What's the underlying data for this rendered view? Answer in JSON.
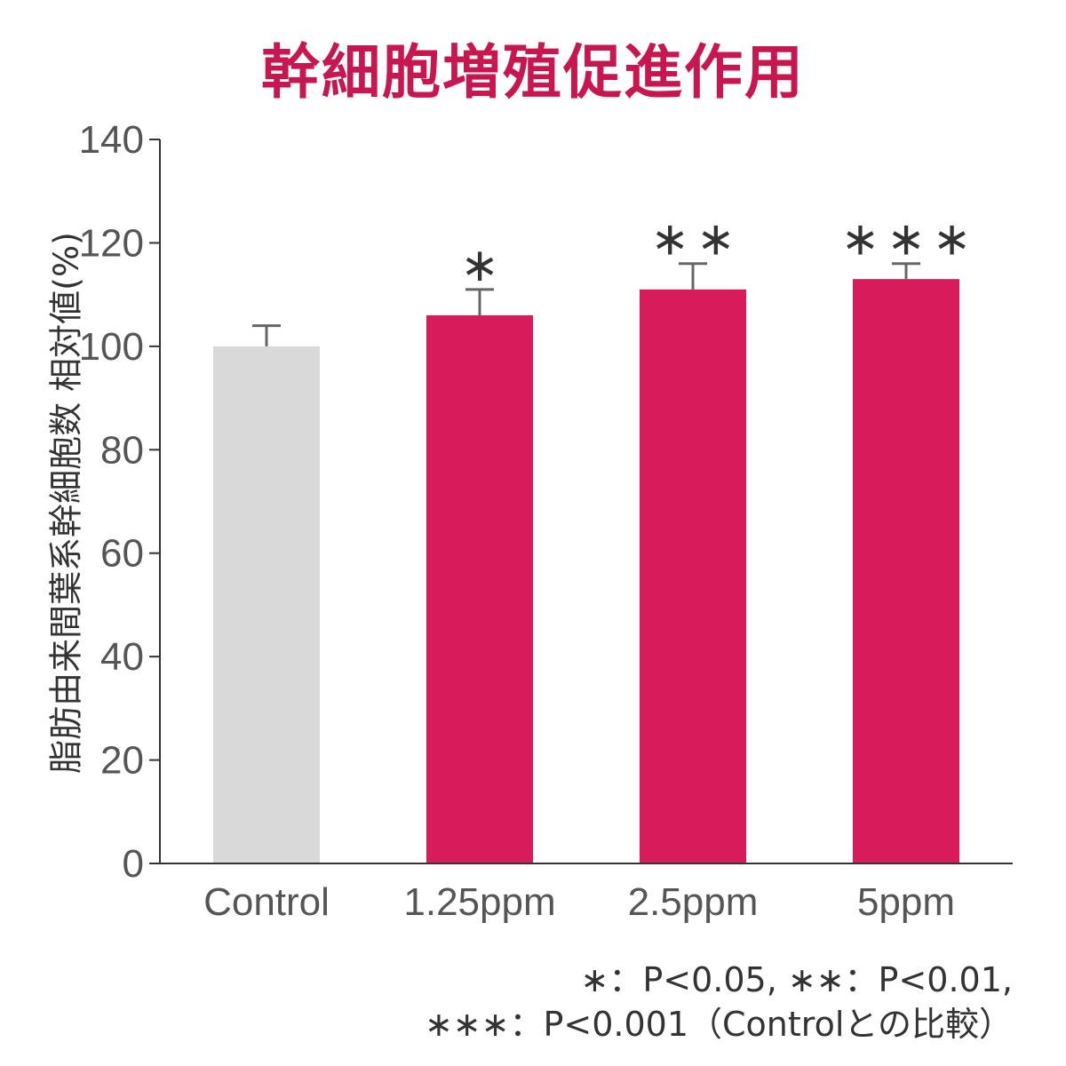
{
  "title": "幹細胞増殖促進作用",
  "colors": {
    "title": "#c8174f",
    "control_bar": "#d9d9d9",
    "treatment_bar": "#d81b5a",
    "axis": "#333333",
    "error_bar": "#666666"
  },
  "chart_data": {
    "type": "bar",
    "title": "幹細胞増殖促進作用",
    "ylabel": "脂肪由来間葉系幹細胞数 相対値(%)",
    "xlabel": "",
    "ylim": [
      0,
      140
    ],
    "yticks": [
      "0",
      "20",
      "40",
      "60",
      "80",
      "100",
      "120",
      "140"
    ],
    "categories": [
      "Control",
      "1.25ppm",
      "2.5ppm",
      "5ppm"
    ],
    "values": [
      100,
      106,
      111,
      113
    ],
    "error_upper": [
      104,
      111,
      116,
      116
    ],
    "significance": [
      "",
      "∗",
      "∗∗",
      "∗∗∗"
    ],
    "grid": false,
    "legend": "none"
  },
  "footnote": {
    "line1": "∗：P<0.05, ∗∗：P<0.01,",
    "line2": "∗∗∗：P<0.001（Controlとの比較）"
  }
}
